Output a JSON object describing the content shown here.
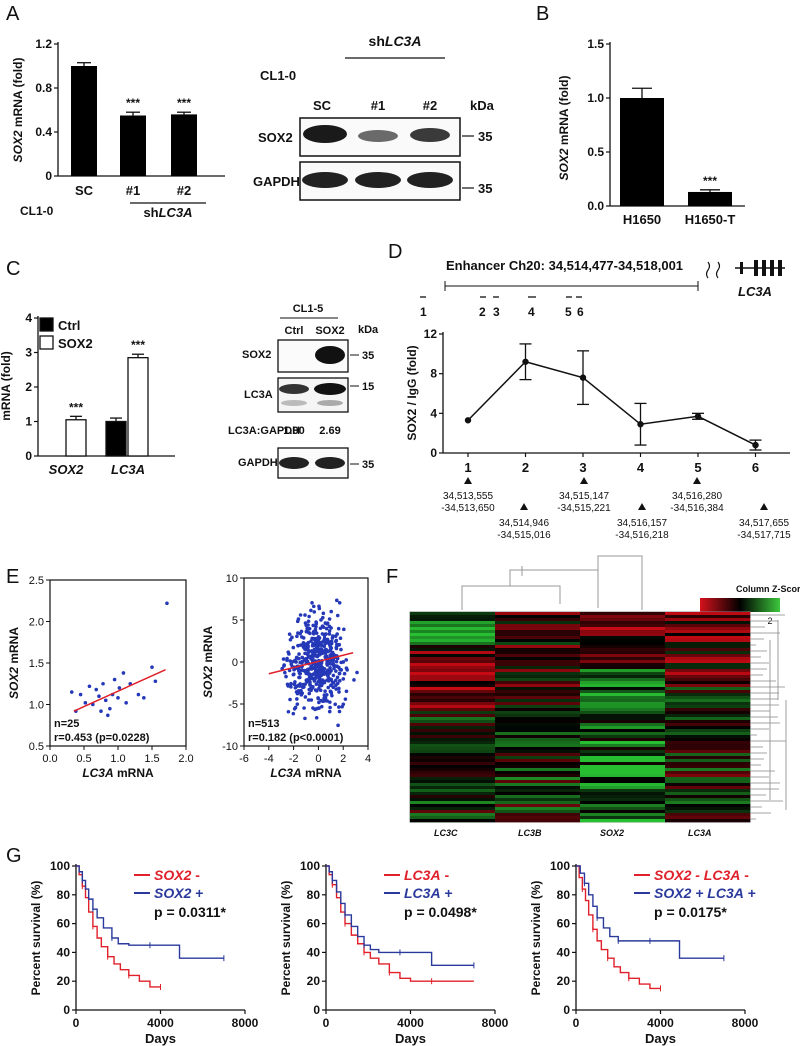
{
  "panels": {
    "A": {
      "label": "A",
      "chart": {
        "type": "bar",
        "ylabel_gene": "SOX2",
        "ylabel_rest": " mRNA (fold)",
        "ylim": [
          0,
          1.2
        ],
        "yticks": [
          "0",
          "0.4",
          "0.8",
          "1.2"
        ],
        "categories": [
          "SC",
          "#1",
          "#2"
        ],
        "values": [
          1.0,
          0.55,
          0.56
        ],
        "errors": [
          0.03,
          0.03,
          0.02
        ],
        "significance": [
          "",
          "***",
          "***"
        ],
        "row_label": "CL1-0",
        "group_label_prefix": "sh",
        "group_label_gene": "LC3A"
      },
      "blot": {
        "cell_line": "CL1-0",
        "group_prefix": "sh",
        "group_gene": "LC3A",
        "lanes": [
          "SC",
          "#1",
          "#2"
        ],
        "kda": "kDa",
        "rows": [
          {
            "name": "SOX2",
            "marker": "35"
          },
          {
            "name": "GAPDH",
            "marker": "35"
          }
        ]
      }
    },
    "B": {
      "label": "B",
      "chart": {
        "type": "bar",
        "ylabel_gene": "SOX2",
        "ylabel_rest": " mRNA (fold)",
        "ylim": [
          0,
          1.5
        ],
        "yticks": [
          "0.0",
          "0.5",
          "1.0",
          "1.5"
        ],
        "categories": [
          "H1650",
          "H1650-T"
        ],
        "values": [
          1.0,
          0.13
        ],
        "errors": [
          0.09,
          0.02
        ],
        "significance": [
          "",
          "***"
        ]
      }
    },
    "C": {
      "label": "C",
      "chart": {
        "type": "bar",
        "ylabel": "mRNA (fold)",
        "ylim": [
          0,
          4
        ],
        "yticks": [
          "0",
          "1",
          "2",
          "3",
          "4"
        ],
        "categories": [
          "SOX2",
          "LC3A"
        ],
        "series": [
          {
            "name": "Ctrl",
            "values": [
              0,
              1.0
            ],
            "errors": [
              0,
              0.1
            ],
            "color": "#000000"
          },
          {
            "name": "SOX2",
            "values": [
              1.05,
              2.85
            ],
            "errors": [
              0.1,
              0.1
            ],
            "color": "#ffffff"
          }
        ],
        "significance": [
          "***",
          "***"
        ]
      },
      "blot": {
        "cell_line": "CL1-5",
        "lanes": [
          "Ctrl",
          "SOX2"
        ],
        "kda": "kDa",
        "rows": [
          {
            "name": "SOX2",
            "marker": "35"
          },
          {
            "name": "LC3A",
            "marker": "15"
          },
          {
            "name": "GAPDH",
            "marker": "35"
          }
        ],
        "ratio_label": "LC3A:GAPDH",
        "ratio_values": [
          "1.00",
          "2.69"
        ]
      }
    },
    "D": {
      "label": "D",
      "enhancer_text": "Enhancer Ch20: 34,514,477-34,518,001",
      "gene": "LC3A",
      "region_labels": [
        "1",
        "2",
        "3",
        "4",
        "5",
        "6"
      ],
      "chart": {
        "type": "line",
        "ylabel": "SOX2 / IgG (fold)",
        "ylim": [
          0,
          12
        ],
        "yticks": [
          "0",
          "4",
          "8",
          "12"
        ],
        "x": [
          "1",
          "2",
          "3",
          "4",
          "5",
          "6"
        ],
        "values": [
          3.3,
          9.2,
          7.6,
          2.9,
          3.7,
          0.8
        ],
        "errors": [
          0,
          1.8,
          2.7,
          2.1,
          0.3,
          0.5
        ]
      },
      "coords_top": [
        [
          "34,513,555",
          "-34,513,650"
        ],
        [
          "34,515,147",
          "-34,515,221"
        ],
        [
          "34,516,280",
          "-34,516,384"
        ]
      ],
      "coords_bottom": [
        [
          "34,514,946",
          "-34,515,016"
        ],
        [
          "34,516,157",
          "-34,516,218"
        ],
        [
          "34,517,655",
          "-34,517,715"
        ]
      ]
    },
    "E": {
      "label": "E",
      "charts": [
        {
          "type": "scatter",
          "ylabel_gene": "SOX2",
          "ylabel_rest": " mRNA",
          "xlabel_gene": "LC3A",
          "xlabel_rest": " mRNA",
          "xlim": [
            0,
            2.0
          ],
          "ylim": [
            0.5,
            2.5
          ],
          "xticks": [
            "0.0",
            "0.5",
            "1.0",
            "1.5",
            "2.0"
          ],
          "yticks": [
            "0.5",
            "1.0",
            "1.5",
            "2.0",
            "2.5"
          ],
          "points": [
            [
              0.32,
              1.15
            ],
            [
              0.38,
              0.92
            ],
            [
              0.45,
              1.12
            ],
            [
              0.52,
              1.02
            ],
            [
              0.58,
              1.22
            ],
            [
              0.63,
              1.0
            ],
            [
              0.68,
              1.18
            ],
            [
              0.72,
              1.1
            ],
            [
              0.75,
              0.92
            ],
            [
              0.78,
              1.25
            ],
            [
              0.82,
              1.05
            ],
            [
              0.85,
              0.87
            ],
            [
              0.88,
              0.95
            ],
            [
              0.92,
              1.12
            ],
            [
              0.95,
              1.3
            ],
            [
              1.0,
              1.08
            ],
            [
              1.02,
              1.2
            ],
            [
              1.08,
              1.38
            ],
            [
              1.12,
              1.02
            ],
            [
              1.18,
              1.25
            ],
            [
              1.3,
              1.12
            ],
            [
              1.38,
              1.08
            ],
            [
              1.5,
              1.45
            ],
            [
              1.55,
              1.28
            ],
            [
              1.72,
              2.22
            ]
          ],
          "fit": [
            [
              0.35,
              0.92
            ],
            [
              1.7,
              1.42
            ]
          ],
          "stats_n": "n=25",
          "stats_r": "r=0.453 (p=0.0228)"
        },
        {
          "type": "scatter",
          "ylabel_gene": "SOX2",
          "ylabel_rest": " mRNA",
          "xlabel_gene": "LC3A",
          "xlabel_rest": " mRNA",
          "xlim": [
            -6,
            4
          ],
          "ylim": [
            -10,
            10
          ],
          "xticks": [
            "-6",
            "-4",
            "-2",
            "0",
            "2",
            "4"
          ],
          "yticks": [
            "-10",
            "-5",
            "0",
            "5",
            "10"
          ],
          "n_points": 513,
          "point_cloud": {
            "x_center": -0.2,
            "x_sd": 1.2,
            "y_center": 0,
            "y_sd": 2.6
          },
          "fit": [
            [
              -4,
              -1.4
            ],
            [
              2.8,
              1.1
            ]
          ],
          "stats_n": "n=513",
          "stats_r": "r=0.182 (p<0.0001)"
        }
      ]
    },
    "F": {
      "label": "F",
      "legend_title": "Column Z-Score",
      "legend_ticks": [
        "-2",
        "0",
        "2"
      ],
      "columns": [
        "LC3C",
        "LC3B",
        "SOX2",
        "LC3A"
      ]
    },
    "G": {
      "label": "G",
      "charts": [
        {
          "type": "line",
          "legend": [
            {
              "gene": "SOX2",
              "suffix": " -",
              "color": "#e0202a"
            },
            {
              "gene": "SOX2",
              "suffix": " +",
              "color": "#2a3a9c"
            }
          ],
          "pvalue": "p = 0.0311*",
          "ylabel": "Percent survival (%)",
          "xlabel": "Days",
          "xlim": [
            0,
            8000
          ],
          "ylim": [
            0,
            100
          ],
          "xticks": [
            "0",
            "4000",
            "8000"
          ],
          "yticks": [
            "0",
            "20",
            "40",
            "60",
            "80",
            "100"
          ],
          "series": [
            {
              "name": "SOX2 -",
              "color": "#e0202a",
              "x": [
                0,
                150,
                300,
                450,
                600,
                800,
                1000,
                1200,
                1500,
                1800,
                2100,
                2500,
                3000,
                3500,
                4000
              ],
              "y": [
                100,
                94,
                86,
                78,
                68,
                58,
                50,
                44,
                37,
                32,
                28,
                24,
                20,
                16,
                16
              ]
            },
            {
              "name": "SOX2 +",
              "color": "#2a3a9c",
              "x": [
                0,
                150,
                300,
                450,
                600,
                800,
                1000,
                1300,
                1700,
                2000,
                2500,
                3500,
                4900,
                4900,
                7000
              ],
              "y": [
                100,
                96,
                90,
                84,
                77,
                70,
                64,
                57,
                50,
                46,
                45,
                45,
                45,
                36,
                36
              ]
            }
          ]
        },
        {
          "type": "line",
          "legend": [
            {
              "gene": "LC3A",
              "suffix": " -",
              "color": "#e0202a"
            },
            {
              "gene": "LC3A",
              "suffix": " +",
              "color": "#2a3a9c"
            }
          ],
          "pvalue": "p = 0.0498*",
          "ylabel": "Percent survival (%)",
          "xlabel": "Days",
          "xlim": [
            0,
            8000
          ],
          "ylim": [
            0,
            100
          ],
          "xticks": [
            "0",
            "4000",
            "8000"
          ],
          "yticks": [
            "0",
            "20",
            "40",
            "60",
            "80",
            "100"
          ],
          "series": [
            {
              "name": "LC3A -",
              "color": "#e0202a",
              "x": [
                0,
                150,
                300,
                500,
                700,
                900,
                1200,
                1500,
                1800,
                2100,
                2500,
                3000,
                3500,
                4000,
                5000,
                7000
              ],
              "y": [
                100,
                94,
                87,
                78,
                68,
                60,
                52,
                46,
                40,
                36,
                32,
                26,
                22,
                20,
                20,
                20
              ]
            },
            {
              "name": "LC3A +",
              "color": "#2a3a9c",
              "x": [
                0,
                150,
                300,
                500,
                700,
                900,
                1200,
                1500,
                1800,
                2100,
                2500,
                3500,
                5000,
                5000,
                7000
              ],
              "y": [
                100,
                96,
                90,
                82,
                74,
                66,
                58,
                51,
                45,
                42,
                40,
                40,
                40,
                31,
                31
              ]
            }
          ]
        },
        {
          "type": "line",
          "legend": [
            {
              "gene": "SOX2 - LC3A",
              "suffix": " -",
              "color": "#e0202a"
            },
            {
              "gene": "SOX2 + LC3A",
              "suffix": " +",
              "color": "#2a3a9c"
            }
          ],
          "pvalue": "p = 0.0175*",
          "ylabel": "Percent survival (%)",
          "xlabel": "Days",
          "xlim": [
            0,
            8000
          ],
          "ylim": [
            0,
            100
          ],
          "xticks": [
            "0",
            "4000",
            "8000"
          ],
          "yticks": [
            "0",
            "20",
            "40",
            "60",
            "80",
            "100"
          ],
          "series": [
            {
              "name": "SOX2 - LC3A -",
              "color": "#e0202a",
              "x": [
                0,
                150,
                300,
                450,
                600,
                800,
                1000,
                1200,
                1500,
                1800,
                2100,
                2500,
                3000,
                3500,
                4000
              ],
              "y": [
                100,
                92,
                84,
                76,
                66,
                56,
                48,
                42,
                36,
                30,
                26,
                22,
                18,
                15,
                15
              ]
            },
            {
              "name": "SOX2 + LC3A +",
              "color": "#2a3a9c",
              "x": [
                0,
                200,
                400,
                600,
                800,
                1000,
                1300,
                1600,
                2000,
                2500,
                3000,
                3500,
                4900,
                4900,
                7000
              ],
              "y": [
                100,
                95,
                88,
                80,
                72,
                64,
                57,
                51,
                48,
                48,
                48,
                48,
                48,
                36,
                36
              ]
            }
          ]
        }
      ]
    },
    "chart_data": [
      {
        "panel": "A",
        "type": "bar",
        "ylabel": "SOX2 mRNA (fold)",
        "categories": [
          "SC",
          "#1",
          "#2"
        ],
        "values": [
          1.0,
          0.55,
          0.56
        ],
        "ylim": [
          0,
          1.2
        ]
      },
      {
        "panel": "B",
        "type": "bar",
        "ylabel": "SOX2 mRNA (fold)",
        "categories": [
          "H1650",
          "H1650-T"
        ],
        "values": [
          1.0,
          0.13
        ],
        "ylim": [
          0,
          1.5
        ]
      },
      {
        "panel": "C",
        "type": "bar",
        "ylabel": "mRNA (fold)",
        "categories": [
          "SOX2",
          "LC3A"
        ],
        "series": [
          {
            "name": "Ctrl",
            "values": [
              0,
              1.0
            ]
          },
          {
            "name": "SOX2",
            "values": [
              1.05,
              2.85
            ]
          }
        ],
        "ylim": [
          0,
          4
        ]
      },
      {
        "panel": "D",
        "type": "line",
        "ylabel": "SOX2 / IgG (fold)",
        "x": [
          "1",
          "2",
          "3",
          "4",
          "5",
          "6"
        ],
        "values": [
          3.3,
          9.2,
          7.6,
          2.9,
          3.7,
          0.8
        ],
        "ylim": [
          0,
          12
        ]
      },
      {
        "panel": "E1",
        "type": "scatter",
        "xlabel": "LC3A mRNA",
        "ylabel": "SOX2 mRNA",
        "xlim": [
          0,
          2.0
        ],
        "ylim": [
          0.5,
          2.5
        ]
      },
      {
        "panel": "E2",
        "type": "scatter",
        "xlabel": "LC3A mRNA",
        "ylabel": "SOX2 mRNA",
        "xlim": [
          -6,
          4
        ],
        "ylim": [
          -10,
          10
        ]
      },
      {
        "panel": "F",
        "type": "heatmap",
        "categories": [
          "LC3C",
          "LC3B",
          "SOX2",
          "LC3A"
        ]
      },
      {
        "panel": "G1",
        "type": "line",
        "xlabel": "Days",
        "ylabel": "Percent survival (%)",
        "series": [
          {
            "name": "SOX2 -"
          },
          {
            "name": "SOX2 +"
          }
        ]
      },
      {
        "panel": "G2",
        "type": "line",
        "xlabel": "Days",
        "ylabel": "Percent survival (%)",
        "series": [
          {
            "name": "LC3A -"
          },
          {
            "name": "LC3A +"
          }
        ]
      },
      {
        "panel": "G3",
        "type": "line",
        "xlabel": "Days",
        "ylabel": "Percent survival (%)",
        "series": [
          {
            "name": "SOX2 - LC3A -"
          },
          {
            "name": "SOX2 + LC3A +"
          }
        ]
      }
    ]
  }
}
